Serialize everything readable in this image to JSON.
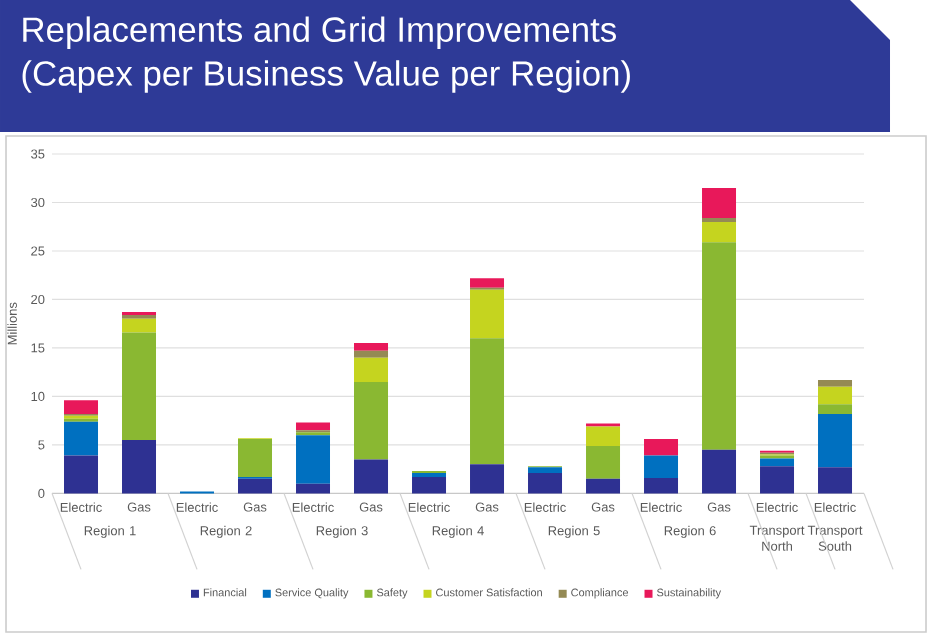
{
  "chart_data": {
    "type": "bar",
    "stacked": true,
    "title": "Replacements and Grid Improvements",
    "subtitle": "(Capex per Business Value per Region)",
    "ylabel": "Millions",
    "categories": [
      "Electric",
      "Gas",
      "Electric",
      "Gas",
      "Electric",
      "Gas",
      "Electric",
      "Gas",
      "Electric",
      "Gas",
      "Electric",
      "Gas",
      "Electric",
      "Electric"
    ],
    "annotations": [
      "Region 1",
      "Region 2",
      "Region 3",
      "Region 4",
      "Region 5",
      "Region 6",
      "Transport North",
      "Transport South"
    ],
    "series": [
      {
        "name": "Financial",
        "color": "#2e3192",
        "values": [
          3.9,
          5.5,
          0,
          1.5,
          1.0,
          3.5,
          1.7,
          3.0,
          2.1,
          1.5,
          1.6,
          4.5,
          2.8,
          2.7
        ]
      },
      {
        "name": "Service Quality",
        "color": "#0070c0",
        "values": [
          3.5,
          0,
          0.2,
          0.2,
          5.0,
          0,
          0.4,
          0,
          0.6,
          0,
          2.3,
          0,
          0.8,
          5.5
        ]
      },
      {
        "name": "Safety",
        "color": "#8ab832",
        "values": [
          0.3,
          11.1,
          0,
          3.9,
          0.3,
          8.0,
          0.2,
          13.0,
          0.1,
          3.4,
          0,
          21.4,
          0.3,
          1.0
        ]
      },
      {
        "name": "Customer Satisfaction",
        "color": "#c5d41f",
        "values": [
          0.3,
          1.4,
          0,
          0.1,
          0,
          2.5,
          0,
          5.0,
          0,
          2.0,
          0,
          2.1,
          0.1,
          1.8
        ]
      },
      {
        "name": "Compliance",
        "color": "#948a54",
        "values": [
          0.2,
          0.4,
          0,
          0,
          0.2,
          0.7,
          0,
          0.2,
          0,
          0,
          0,
          0.4,
          0.2,
          0.7
        ]
      },
      {
        "name": "Sustainability",
        "color": "#e8185a",
        "values": [
          1.4,
          0.3,
          0,
          0,
          0.8,
          0.8,
          0,
          1.0,
          0,
          0.3,
          1.7,
          3.1,
          0.2,
          0
        ]
      }
    ],
    "ylim": [
      0,
      35
    ],
    "yticks": [
      0,
      5,
      10,
      15,
      20,
      25,
      30,
      35
    ],
    "grid": "y",
    "legend": "bottom"
  }
}
